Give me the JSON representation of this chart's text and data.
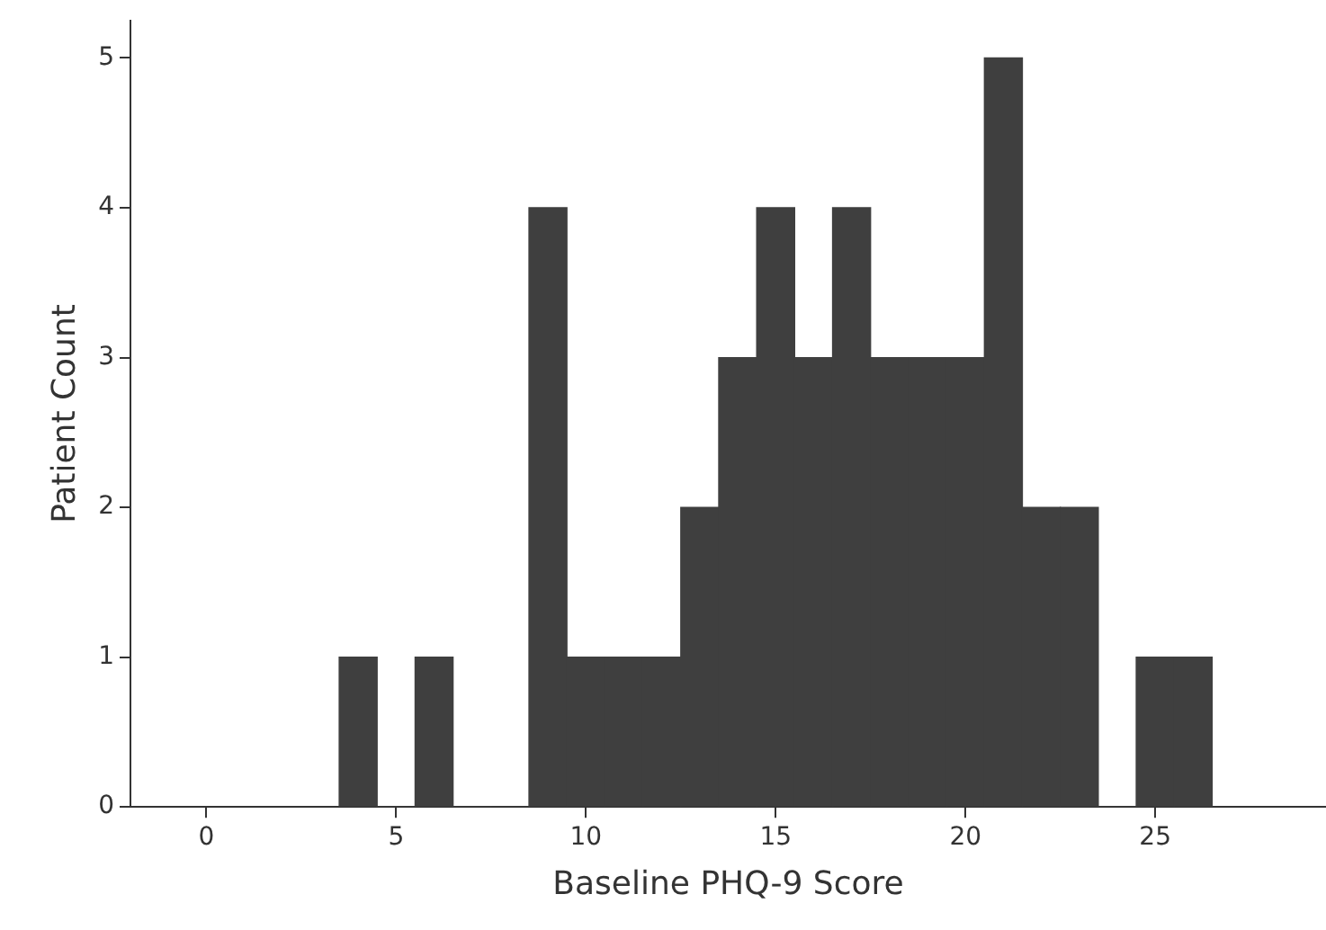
{
  "chart_data": {
    "type": "histogram",
    "xlabel": "Baseline PHQ-9 Score",
    "ylabel": "Patient Count",
    "bins": [
      3.5,
      4.5,
      5.5,
      6.5,
      7.5,
      8.5,
      9.5,
      10.5,
      11.5,
      12.5,
      13.5,
      14.5,
      15.5,
      16.5,
      17.5,
      18.5,
      19.5,
      20.5,
      21.5,
      22.5,
      23.5,
      24.5,
      25.5,
      26.5
    ],
    "values": [
      1,
      0,
      1,
      0,
      0,
      4,
      1,
      1,
      1,
      2,
      3,
      4,
      3,
      4,
      3,
      3,
      3,
      5,
      2,
      2,
      0,
      1,
      1
    ],
    "color": "#3f3f3f",
    "xlim": [
      -2,
      29.5
    ],
    "xticks": [
      0,
      5,
      10,
      15,
      20,
      25
    ],
    "ylim": [
      0,
      5.25
    ],
    "yticks": [
      0,
      1,
      2,
      3,
      4,
      5
    ],
    "grid": false,
    "legend": false
  }
}
